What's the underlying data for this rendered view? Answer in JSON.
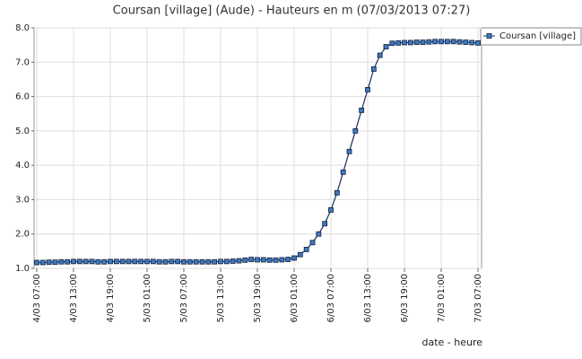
{
  "chart_data": {
    "type": "line",
    "title": "Coursan [village] (Aude) - Hauteurs en m (07/03/2013 07:27)",
    "x_label": "date - heure",
    "categories": [
      "4/03 07:00",
      null,
      null,
      null,
      null,
      null,
      "4/03 13:00",
      null,
      null,
      null,
      null,
      null,
      "4/03 19:00",
      null,
      null,
      null,
      null,
      null,
      "5/03 01:00",
      null,
      null,
      null,
      null,
      null,
      "5/03 07:00",
      null,
      null,
      null,
      null,
      null,
      "5/03 13:00",
      null,
      null,
      null,
      null,
      null,
      "5/03 19:00",
      null,
      null,
      null,
      null,
      null,
      "6/03 01:00",
      null,
      null,
      null,
      null,
      null,
      "6/03 07:00",
      null,
      null,
      null,
      null,
      null,
      "6/03 13:00",
      null,
      null,
      null,
      null,
      null,
      "6/03 19:00",
      null,
      null,
      null,
      null,
      null,
      "7/03 01:00",
      null,
      null,
      null,
      null,
      null,
      "7/03 07:00"
    ],
    "series": [
      {
        "name": "Coursan [village]",
        "color": "#3f78c0",
        "values": [
          1.17,
          1.17,
          1.18,
          1.18,
          1.19,
          1.19,
          1.2,
          1.2,
          1.2,
          1.2,
          1.19,
          1.19,
          1.2,
          1.2,
          1.2,
          1.2,
          1.2,
          1.2,
          1.2,
          1.2,
          1.19,
          1.19,
          1.2,
          1.2,
          1.19,
          1.19,
          1.19,
          1.19,
          1.19,
          1.19,
          1.2,
          1.2,
          1.21,
          1.22,
          1.24,
          1.26,
          1.25,
          1.25,
          1.24,
          1.24,
          1.25,
          1.26,
          1.3,
          1.4,
          1.55,
          1.75,
          2.0,
          2.3,
          2.7,
          3.2,
          3.8,
          4.4,
          5.0,
          5.6,
          6.2,
          6.8,
          7.2,
          7.45,
          7.55,
          7.56,
          7.57,
          7.57,
          7.58,
          7.58,
          7.59,
          7.6,
          7.6,
          7.6,
          7.6,
          7.59,
          7.58,
          7.57,
          7.56
        ]
      }
    ],
    "ylim": [
      1,
      8
    ],
    "yticks": [
      {
        "value": 1,
        "label": "1.0"
      },
      {
        "value": 2,
        "label": "2.0"
      },
      {
        "value": 3,
        "label": "3.0"
      },
      {
        "value": 4,
        "label": "4.0"
      },
      {
        "value": 5,
        "label": "5.0"
      },
      {
        "value": 6,
        "label": "6.0"
      },
      {
        "value": 7,
        "label": "7.0"
      },
      {
        "value": 8,
        "label": "8.0"
      }
    ],
    "grid": true,
    "legend": "top-right"
  }
}
